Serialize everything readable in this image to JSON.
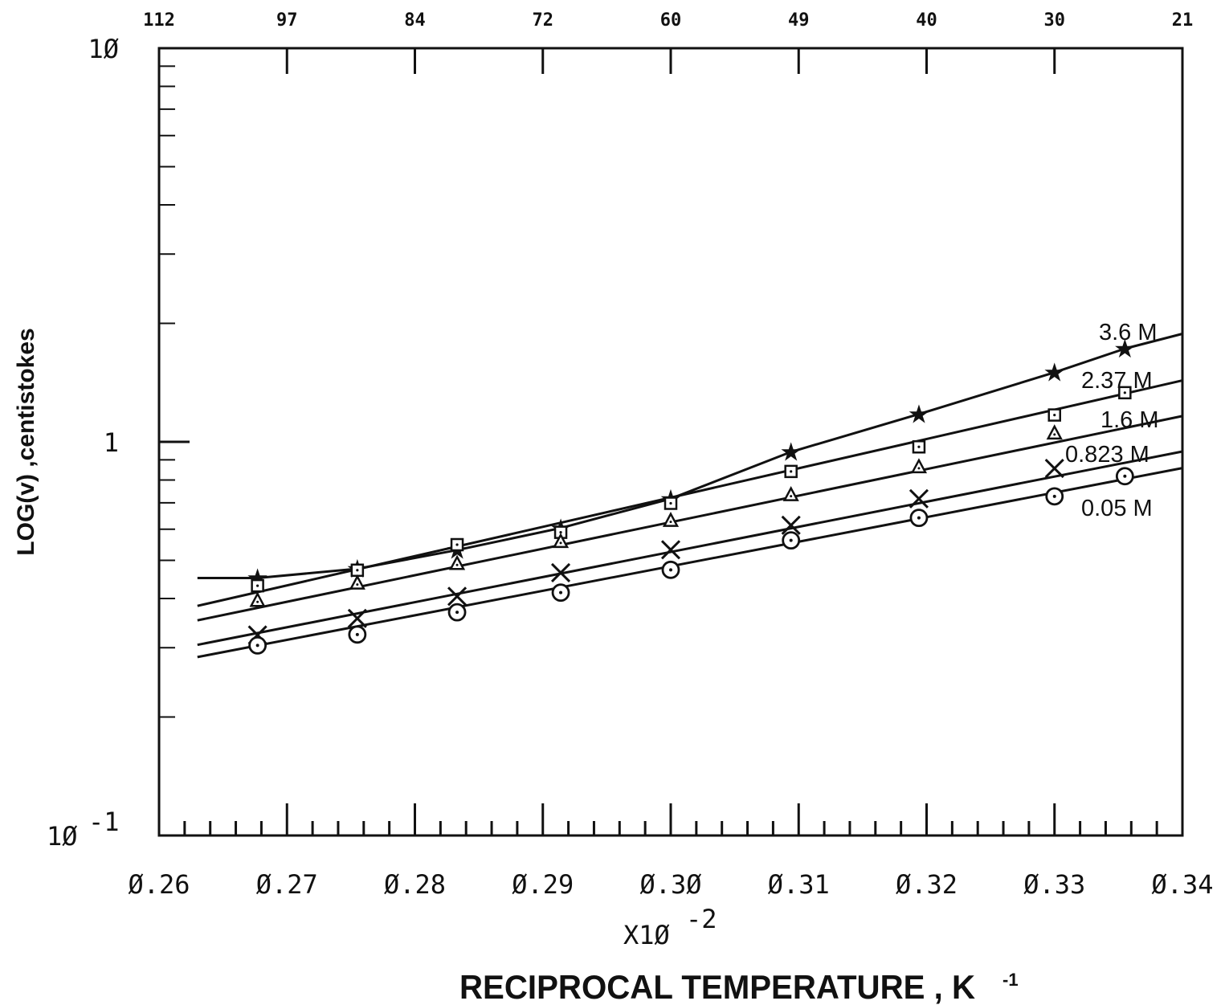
{
  "chart_data": {
    "type": "line",
    "x_scale": "linear",
    "y_scale": "log",
    "xlim": [
      0.26,
      0.34
    ],
    "ylim": [
      0.1,
      10
    ],
    "x_ticks": [
      {
        "value": 0.26,
        "label": "Ø.26"
      },
      {
        "value": 0.27,
        "label": "Ø.27"
      },
      {
        "value": 0.28,
        "label": "Ø.28"
      },
      {
        "value": 0.29,
        "label": "Ø.29"
      },
      {
        "value": 0.3,
        "label": "Ø.3Ø"
      },
      {
        "value": 0.31,
        "label": "Ø.31"
      },
      {
        "value": 0.32,
        "label": "Ø.32"
      },
      {
        "value": 0.33,
        "label": "Ø.33"
      },
      {
        "value": 0.34,
        "label": "Ø.34"
      }
    ],
    "x_multiplier_label": "X1Ø",
    "x_multiplier_exponent": "-2",
    "top_axis_labels": [
      {
        "value": 0.26,
        "label": "112"
      },
      {
        "value": 0.27,
        "label": "97"
      },
      {
        "value": 0.28,
        "label": "84"
      },
      {
        "value": 0.29,
        "label": "72"
      },
      {
        "value": 0.3,
        "label": "60"
      },
      {
        "value": 0.31,
        "label": "49"
      },
      {
        "value": 0.32,
        "label": "40"
      },
      {
        "value": 0.33,
        "label": "30"
      },
      {
        "value": 0.34,
        "label": "21"
      }
    ],
    "y_ticks": [
      {
        "value": 10,
        "label": "1Ø",
        "exponent": ""
      },
      {
        "value": 1,
        "label": "1",
        "exponent": ""
      },
      {
        "value": 0.1,
        "label": "1Ø",
        "exponent": "-1"
      }
    ],
    "ylabel": "LOG(v) ,centistokes",
    "xlabel": "RECIPROCAL TEMPERATURE , K",
    "xlabel_exponent": "-1",
    "series": [
      {
        "name": "3.6 M",
        "marker": "star",
        "x": [
          0.2677,
          0.2755,
          0.2833,
          0.2914,
          0.3,
          0.3094,
          0.3194,
          0.33,
          0.3355
        ],
        "y": [
          0.451,
          0.476,
          0.531,
          0.604,
          0.717,
          0.943,
          1.176,
          1.501,
          1.725
        ],
        "line_x": [
          0.263,
          0.2677,
          0.2755,
          0.2833,
          0.2914,
          0.3,
          0.3094,
          0.3194,
          0.33,
          0.3355,
          0.34
        ],
        "line_y": [
          0.451,
          0.451,
          0.476,
          0.531,
          0.604,
          0.717,
          0.943,
          1.176,
          1.501,
          1.725,
          1.881
        ]
      },
      {
        "name": "2.37 M",
        "marker": "square",
        "x": [
          0.2677,
          0.2755,
          0.2833,
          0.2914,
          0.3,
          0.3094,
          0.3194,
          0.33,
          0.3355
        ],
        "y": [
          0.431,
          0.472,
          0.548,
          0.589,
          0.698,
          0.841,
          0.971,
          1.17,
          1.333
        ],
        "line_x": [
          0.263,
          0.34
        ],
        "line_y": [
          0.383,
          1.432
        ]
      },
      {
        "name": "1.6 M",
        "marker": "triangle",
        "x": [
          0.2677,
          0.2755,
          0.2833,
          0.2914,
          0.3,
          0.3094,
          0.3194,
          0.33
        ],
        "y": [
          0.394,
          0.436,
          0.489,
          0.556,
          0.629,
          0.731,
          0.861,
          1.049
        ],
        "line_x": [
          0.263,
          0.34
        ],
        "line_y": [
          0.352,
          1.163
        ]
      },
      {
        "name": "0.823 M",
        "marker": "x",
        "x": [
          0.2677,
          0.2755,
          0.2833,
          0.2914,
          0.3,
          0.3094,
          0.3194,
          0.33
        ],
        "y": [
          0.323,
          0.356,
          0.405,
          0.465,
          0.532,
          0.614,
          0.717,
          0.856
        ],
        "line_x": [
          0.263,
          0.34
        ],
        "line_y": [
          0.305,
          0.945
        ]
      },
      {
        "name": "0.05 M",
        "marker": "circle",
        "x": [
          0.2677,
          0.2755,
          0.2833,
          0.2914,
          0.3,
          0.3094,
          0.3194,
          0.33,
          0.3355
        ],
        "y": [
          0.304,
          0.324,
          0.369,
          0.414,
          0.473,
          0.562,
          0.641,
          0.727,
          0.818
        ],
        "line_x": [
          0.263,
          0.34
        ],
        "line_y": [
          0.284,
          0.858
        ]
      }
    ]
  }
}
